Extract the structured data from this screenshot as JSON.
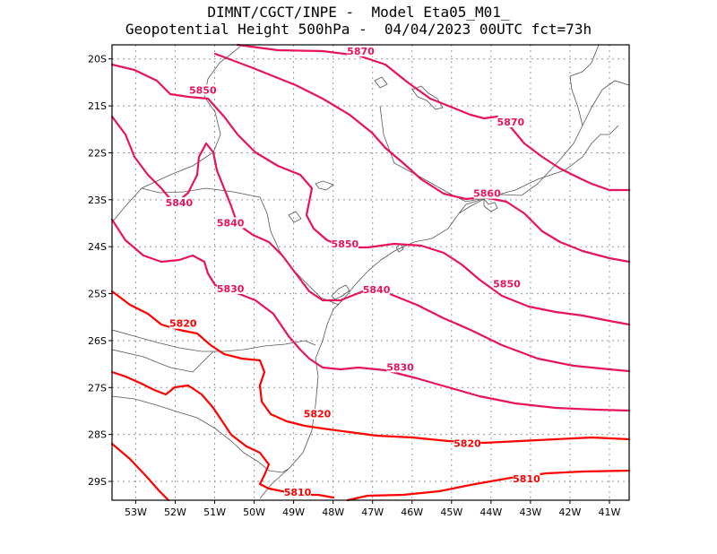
{
  "title": {
    "line1": "DIMNT/CGCT/INPE -  Model Eta05_M01_",
    "line2": "Geopotential Height 500hPa -  04/04/2023 00UTC fct=73h"
  },
  "colors": {
    "contour_magenta": "#e8145a",
    "contour_red": "#ff0000",
    "border": "#555555",
    "frame": "#000000",
    "grid": "#999999"
  },
  "map": {
    "lon_range": [
      -53.6,
      -40.5
    ],
    "lat_range": [
      -29.4,
      -19.7
    ],
    "lat_ticks": [
      "20S",
      "21S",
      "22S",
      "23S",
      "24S",
      "25S",
      "26S",
      "27S",
      "28S",
      "29S"
    ],
    "lon_ticks": [
      "53W",
      "52W",
      "51W",
      "50W",
      "49W",
      "48W",
      "47W",
      "46W",
      "45W",
      "44W",
      "43W",
      "42W",
      "41W"
    ],
    "contour_labels": [
      {
        "text": "5870",
        "lon": -47.3,
        "lat": -19.87
      },
      {
        "text": "5870",
        "lon": -43.5,
        "lat": -21.38
      },
      {
        "text": "5860",
        "lon": -44.1,
        "lat": -22.9
      },
      {
        "text": "5850",
        "lon": -51.3,
        "lat": -20.7
      },
      {
        "text": "5850",
        "lon": -47.7,
        "lat": -23.98
      },
      {
        "text": "5850",
        "lon": -43.6,
        "lat": -24.83
      },
      {
        "text": "5840",
        "lon": -51.9,
        "lat": -23.1
      },
      {
        "text": "5840",
        "lon": -50.6,
        "lat": -23.53
      },
      {
        "text": "5840",
        "lon": -46.9,
        "lat": -24.95
      },
      {
        "text": "5830",
        "lon": -50.6,
        "lat": -24.93
      },
      {
        "text": "5830",
        "lon": -46.3,
        "lat": -26.6
      },
      {
        "text": "5820",
        "lon": -51.8,
        "lat": -25.67
      },
      {
        "text": "5820",
        "lon": -48.4,
        "lat": -27.6
      },
      {
        "text": "5820",
        "lon": -44.6,
        "lat": -28.23
      },
      {
        "text": "5810",
        "lon": -48.9,
        "lat": -29.27
      },
      {
        "text": "5810",
        "lon": -43.1,
        "lat": -28.98
      }
    ]
  }
}
